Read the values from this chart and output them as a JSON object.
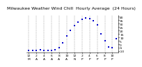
{
  "title": "Milwaukee Weather Wind Chill  Hourly Average  (24 Hours)",
  "hours": [
    0,
    1,
    2,
    3,
    4,
    5,
    6,
    7,
    8,
    9,
    10,
    11,
    12,
    13,
    14,
    15,
    16,
    17,
    18,
    19,
    20,
    21,
    22,
    23
  ],
  "wind_chill": [
    -9,
    -9,
    -9,
    -8,
    -9,
    -9,
    -9,
    -8,
    -5,
    2,
    12,
    20,
    27,
    32,
    36,
    38,
    37,
    34,
    28,
    15,
    5,
    -4,
    -5,
    8
  ],
  "dot_color": "#0000cc",
  "bg_color": "#ffffff",
  "grid_color": "#999999",
  "ylim": [
    -12,
    42
  ],
  "ytick_vals": [
    40,
    35,
    30,
    25,
    20,
    15,
    10,
    5,
    0,
    -5,
    -10
  ],
  "title_fontsize": 4.5,
  "tick_fontsize": 3.2,
  "dot_size": 2.5
}
